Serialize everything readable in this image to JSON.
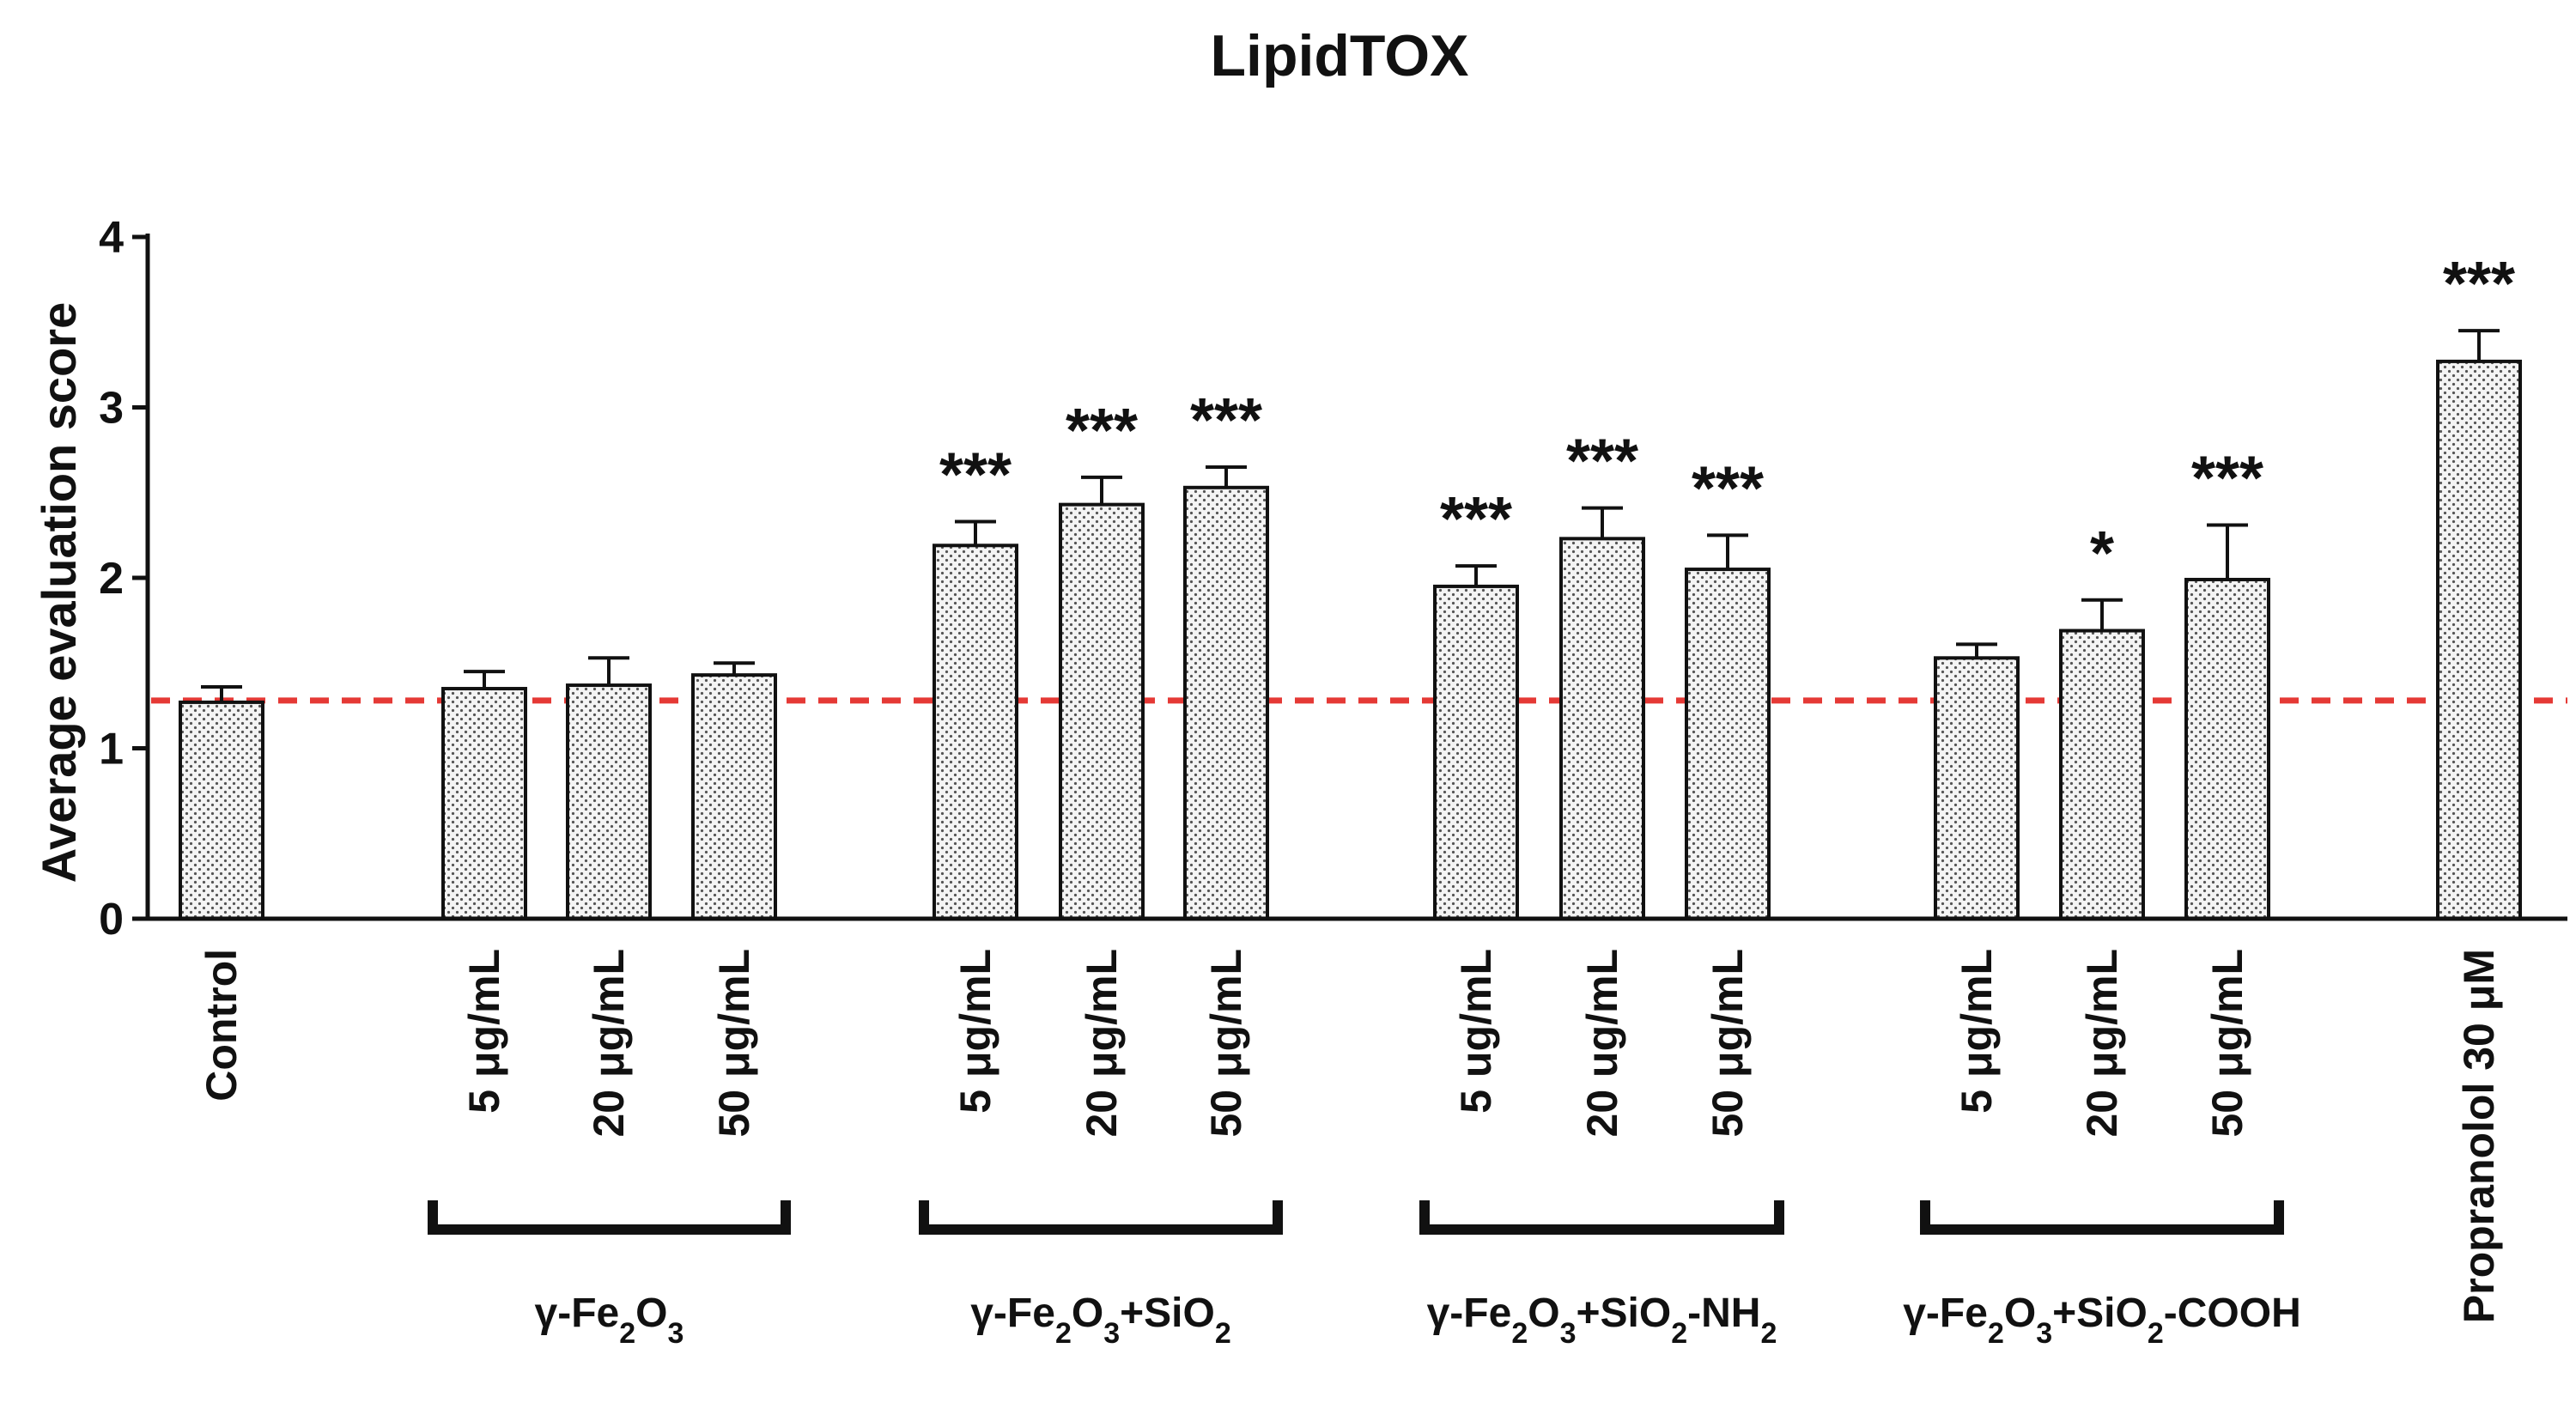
{
  "chart_data": {
    "type": "bar",
    "title": "LipidTOX",
    "ylabel": "Average evaluation score",
    "xlabel": "",
    "ylim": [
      0,
      4
    ],
    "yticks": [
      0,
      1,
      2,
      3,
      4
    ],
    "grid": false,
    "bar_pattern": "dotted",
    "reference_line": {
      "value": 1.28,
      "color": "#e53935",
      "style": "dashed"
    },
    "bars": [
      {
        "label": "Control",
        "value": 1.27,
        "error": 0.09,
        "sig": ""
      },
      {
        "label": "5 μg/mL",
        "value": 1.35,
        "error": 0.1,
        "sig": ""
      },
      {
        "label": "20 μg/mL",
        "value": 1.37,
        "error": 0.16,
        "sig": ""
      },
      {
        "label": "50 μg/mL",
        "value": 1.43,
        "error": 0.07,
        "sig": ""
      },
      {
        "label": "5 μg/mL",
        "value": 2.19,
        "error": 0.14,
        "sig": "***"
      },
      {
        "label": "20 μg/mL",
        "value": 2.43,
        "error": 0.16,
        "sig": "***"
      },
      {
        "label": "50 μg/mL",
        "value": 2.53,
        "error": 0.12,
        "sig": "***"
      },
      {
        "label": "5 ug/mL",
        "value": 1.95,
        "error": 0.12,
        "sig": "***"
      },
      {
        "label": "20 ug/mL",
        "value": 2.23,
        "error": 0.18,
        "sig": "***"
      },
      {
        "label": "50 μg/mL",
        "value": 2.05,
        "error": 0.2,
        "sig": "***"
      },
      {
        "label": "5 μg/mL",
        "value": 1.53,
        "error": 0.08,
        "sig": ""
      },
      {
        "label": "20 μg/mL",
        "value": 1.69,
        "error": 0.18,
        "sig": "*"
      },
      {
        "label": "50 μg/mL",
        "value": 1.99,
        "error": 0.32,
        "sig": "***"
      },
      {
        "label": "Propranolol 30 μM",
        "value": 3.27,
        "error": 0.18,
        "sig": "***"
      }
    ],
    "groups": [
      {
        "label_parts": [
          "γ-Fe",
          "2",
          "O",
          "3"
        ],
        "bar_indices": [
          1,
          2,
          3
        ]
      },
      {
        "label_parts": [
          "γ-Fe",
          "2",
          "O",
          "3",
          "+SiO",
          "2"
        ],
        "bar_indices": [
          4,
          5,
          6
        ]
      },
      {
        "label_parts": [
          "γ-Fe",
          "2",
          "O",
          "3",
          "+SiO",
          "2",
          "-NH",
          "2"
        ],
        "bar_indices": [
          7,
          8,
          9
        ]
      },
      {
        "label_parts": [
          "γ-Fe",
          "2",
          "O",
          "3",
          "+SiO",
          "2",
          "-COOH"
        ],
        "bar_indices": [
          10,
          11,
          12
        ]
      }
    ]
  }
}
